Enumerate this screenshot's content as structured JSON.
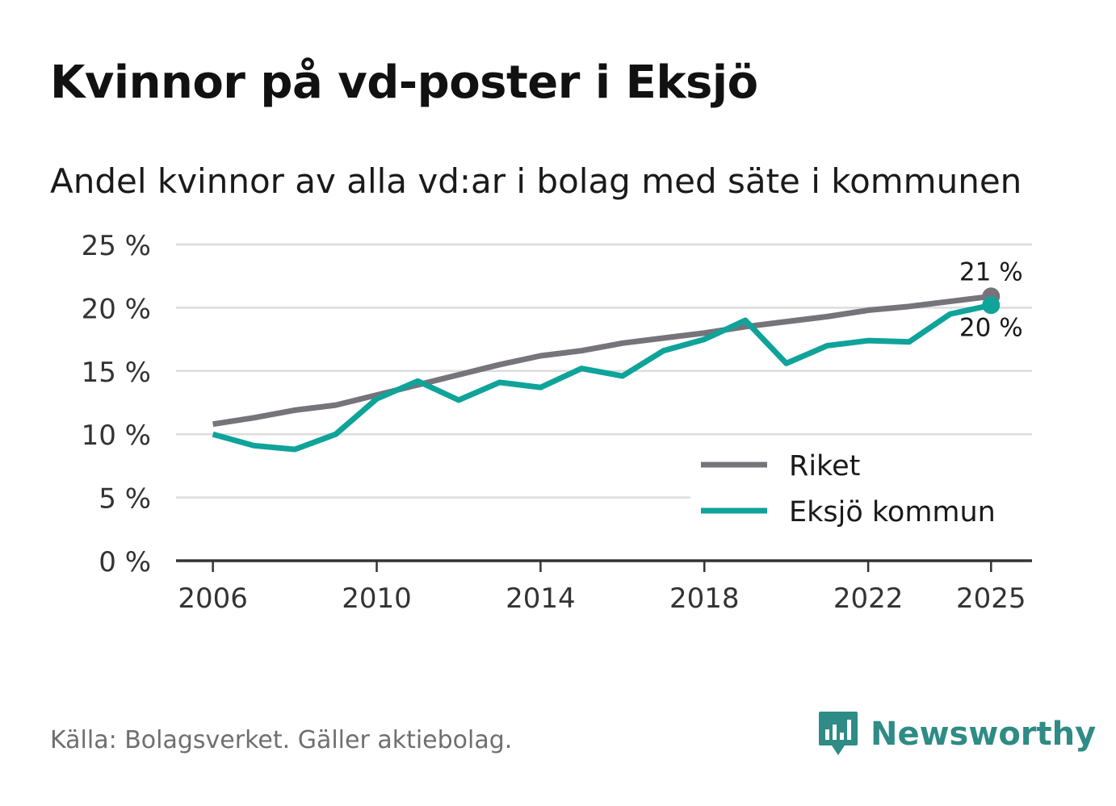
{
  "header": {
    "title": "Kvinnor på vd-poster i Eksjö",
    "subtitle": "Andel kvinnor av alla vd:ar i bolag med säte i kommunen"
  },
  "footer": {
    "source": "Källa: Bolagsverket. Gäller aktiebolag.",
    "brand": "Newsworthy"
  },
  "colors": {
    "riket": "#77737b",
    "eksjo": "#0fa39a",
    "grid": "#dcdcdc",
    "axis": "#333333",
    "brand": "#2e8b85"
  },
  "chart_data": {
    "type": "line",
    "title": "Kvinnor på vd-poster i Eksjö",
    "subtitle": "Andel kvinnor av alla vd:ar i bolag med säte i kommunen",
    "xlabel": "",
    "ylabel": "",
    "x": [
      2006,
      2007,
      2008,
      2009,
      2010,
      2011,
      2012,
      2013,
      2014,
      2015,
      2016,
      2017,
      2018,
      2019,
      2020,
      2021,
      2022,
      2023,
      2024,
      2025
    ],
    "xlim": [
      2005.1,
      2026.0
    ],
    "x_ticks": [
      2006,
      2010,
      2014,
      2018,
      2022,
      2025
    ],
    "ylim": [
      0,
      25
    ],
    "y_ticks": [
      0,
      5,
      10,
      15,
      20,
      25
    ],
    "y_tick_labels": [
      "0 %",
      "5 %",
      "10 %",
      "15 %",
      "20 %",
      "25 %"
    ],
    "grid": true,
    "legend_position": "bottom-right",
    "series": [
      {
        "name": "Riket",
        "color": "#77737b",
        "values": [
          10.8,
          11.3,
          11.9,
          12.3,
          13.1,
          13.9,
          14.7,
          15.5,
          16.2,
          16.6,
          17.2,
          17.6,
          18.0,
          18.5,
          18.9,
          19.3,
          19.8,
          20.1,
          20.5,
          20.9
        ],
        "end_label": "21 %"
      },
      {
        "name": "Eksjö kommun",
        "color": "#0fa39a",
        "values": [
          10.0,
          9.1,
          8.8,
          10.0,
          12.8,
          14.2,
          12.7,
          14.1,
          13.7,
          15.2,
          14.6,
          16.6,
          17.5,
          19.0,
          15.6,
          17.0,
          17.4,
          17.3,
          19.5,
          20.2
        ],
        "end_label": "20 %"
      }
    ]
  }
}
